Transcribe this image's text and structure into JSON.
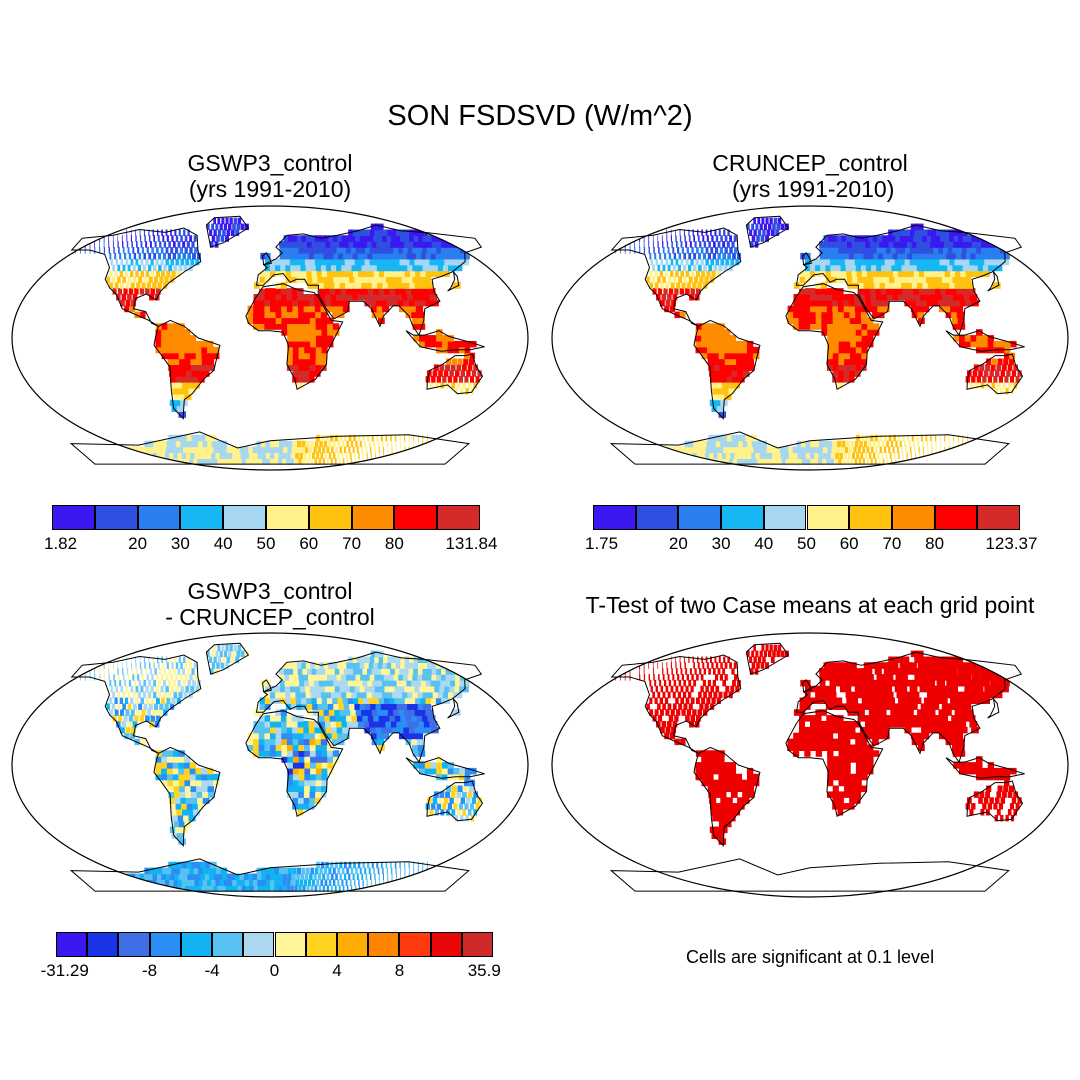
{
  "figure": {
    "title": "SON FSDSVD (W/m^2)"
  },
  "panels": [
    {
      "id": "gswp3",
      "title_line1": "GSWP3_control",
      "title_line2": "(yrs 1991-2010)"
    },
    {
      "id": "cruncep",
      "title_line1": "CRUNCEP_control",
      "title_line2": " (yrs 1991-2010)"
    },
    {
      "id": "diff",
      "title_line1": "GSWP3_control",
      "title_line2": "- CRUNCEP_control"
    },
    {
      "id": "ttest",
      "title_line1": "T-Test of two Case means at each grid point",
      "note": "Cells are significant at 0.1 level"
    }
  ],
  "colorbars": {
    "gswp3": {
      "colors": [
        "#3b18f2",
        "#2f4fe0",
        "#2a7ff0",
        "#17b7f5",
        "#a7d7f0",
        "#fff28a",
        "#ffc20f",
        "#ff9400",
        "#ff6a00",
        "#ff0000",
        "#d42a2a"
      ],
      "colors_shown": [
        "#3b18f2",
        "#2f4fe0",
        "#2a7ff0",
        "#17b7f5",
        "#a7d7f0",
        "#fff28a",
        "#ffc20f",
        "#ff8b00",
        "#ff0000",
        "#d42a2a"
      ],
      "labels": [
        "1.82",
        "20",
        "30",
        "40",
        "50",
        "60",
        "70",
        "80",
        "131.84"
      ]
    },
    "cruncep": {
      "colors_shown": [
        "#3b18f2",
        "#2f4fe0",
        "#2a7ff0",
        "#17b7f5",
        "#a7d7f0",
        "#fff28a",
        "#ffc20f",
        "#ff8b00",
        "#ff0000",
        "#d42a2a"
      ],
      "labels": [
        "1.75",
        "20",
        "30",
        "40",
        "50",
        "60",
        "70",
        "80",
        "123.37"
      ]
    },
    "diff": {
      "colors_shown": [
        "#3b18f2",
        "#1b33e6",
        "#3f6ee6",
        "#2a8ef5",
        "#12b3f2",
        "#57c2f2",
        "#acd9f0",
        "#fff59a",
        "#ffd420",
        "#ffad00",
        "#ff8500",
        "#ff3c10",
        "#e80808",
        "#cf2a2a"
      ],
      "labels": [
        "-31.29",
        "-8",
        "-4",
        "0",
        "4",
        "8",
        "35.9"
      ]
    }
  }
}
